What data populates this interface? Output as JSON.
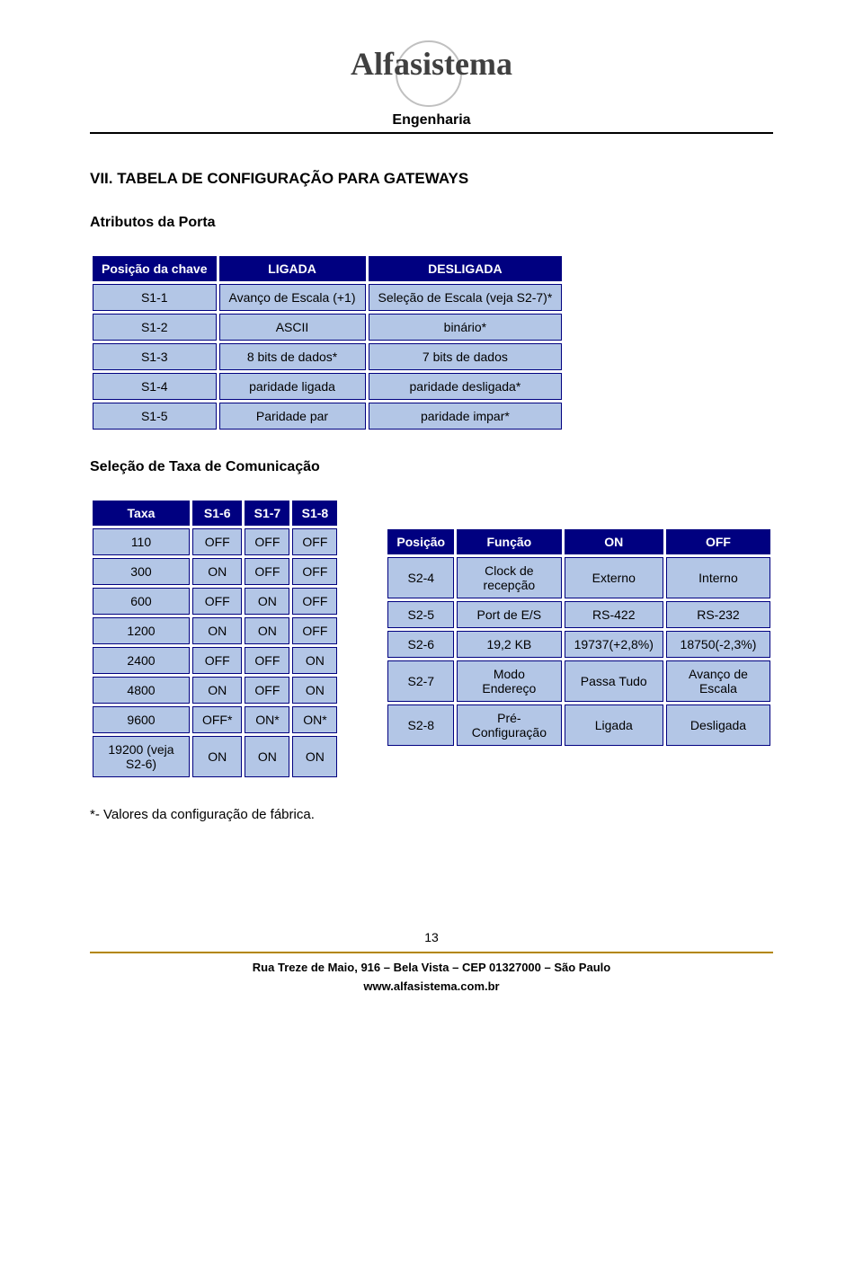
{
  "header": {
    "logo_text": "Alfasistema",
    "subtitle": "Engenharia"
  },
  "section": {
    "title": "VII. TABELA DE CONFIGURAÇÃO PARA GATEWAYS",
    "sub1": "Atributos da Porta",
    "sub2": "Seleção de Taxa de Comunicação"
  },
  "table1": {
    "headers": [
      "Posição da chave",
      "LIGADA",
      "DESLIGADA"
    ],
    "rows": [
      [
        "S1-1",
        "Avanço de Escala (+1)",
        "Seleção de Escala (veja S2-7)*"
      ],
      [
        "S1-2",
        "ASCII",
        "binário*"
      ],
      [
        "S1-3",
        "8 bits de dados*",
        "7 bits de dados"
      ],
      [
        "S1-4",
        "paridade ligada",
        "paridade desligada*"
      ],
      [
        "S1-5",
        "Paridade par",
        "paridade impar*"
      ]
    ],
    "header_bg": "#000080",
    "header_color": "#ffffff",
    "cell_bg": "#b3c6e6",
    "cell_border": "#000080"
  },
  "table2": {
    "headers": [
      "Taxa",
      "S1-6",
      "S1-7",
      "S1-8"
    ],
    "rows": [
      [
        "110",
        "OFF",
        "OFF",
        "OFF"
      ],
      [
        "300",
        "ON",
        "OFF",
        "OFF"
      ],
      [
        "600",
        "OFF",
        "ON",
        "OFF"
      ],
      [
        "1200",
        "ON",
        "ON",
        "OFF"
      ],
      [
        "2400",
        "OFF",
        "OFF",
        "ON"
      ],
      [
        "4800",
        "ON",
        "OFF",
        "ON"
      ],
      [
        "9600",
        "OFF*",
        "ON*",
        "ON*"
      ],
      [
        "19200 (veja S2-6)",
        "ON",
        "ON",
        "ON"
      ]
    ]
  },
  "table3": {
    "headers": [
      "Posição",
      "Função",
      "ON",
      "OFF"
    ],
    "rows": [
      [
        "S2-4",
        "Clock de recepção",
        "Externo",
        "Interno"
      ],
      [
        "S2-5",
        "Port de E/S",
        "RS-422",
        "RS-232"
      ],
      [
        "S2-6",
        "19,2 KB",
        "19737(+2,8%)",
        "18750(-2,3%)"
      ],
      [
        "S2-7",
        "Modo Endereço",
        "Passa Tudo",
        "Avanço de Escala"
      ],
      [
        "S2-8",
        "Pré-Configuração",
        "Ligada",
        "Desligada"
      ]
    ]
  },
  "footnote": "*- Valores da configuração de fábrica.",
  "page_number": "13",
  "footer": {
    "line1": "Rua Treze de Maio, 916 – Bela Vista – CEP 01327000 – São Paulo",
    "line2": "www.alfasistema.com.br"
  }
}
